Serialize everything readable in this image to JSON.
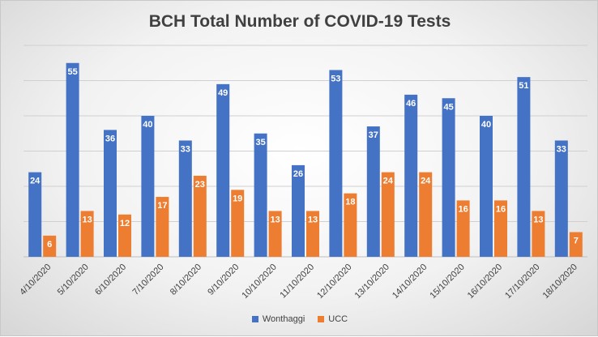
{
  "chart_data": {
    "type": "bar",
    "title": "BCH Total Number of COVID-19 Tests",
    "categories": [
      "4/10/2020",
      "5/10/2020",
      "6/10/2020",
      "7/10/2020",
      "8/10/2020",
      "9/10/2020",
      "10/10/2020",
      "11/10/2020",
      "12/10/2020",
      "13/10/2020",
      "14/10/2020",
      "15/10/2020",
      "16/10/2020",
      "17/10/2020",
      "18/10/2020"
    ],
    "series": [
      {
        "name": "Wonthaggi",
        "color": "#4472c4",
        "values": [
          24,
          55,
          36,
          40,
          33,
          49,
          35,
          26,
          53,
          37,
          46,
          45,
          40,
          51,
          33
        ]
      },
      {
        "name": "UCC",
        "color": "#ed7d31",
        "values": [
          6,
          13,
          12,
          17,
          23,
          19,
          13,
          13,
          18,
          24,
          24,
          16,
          16,
          13,
          7
        ]
      }
    ],
    "xlabel": "",
    "ylabel": "",
    "ylim": [
      0,
      60
    ],
    "grid": true,
    "legend": "bottom",
    "data_labels": true
  }
}
